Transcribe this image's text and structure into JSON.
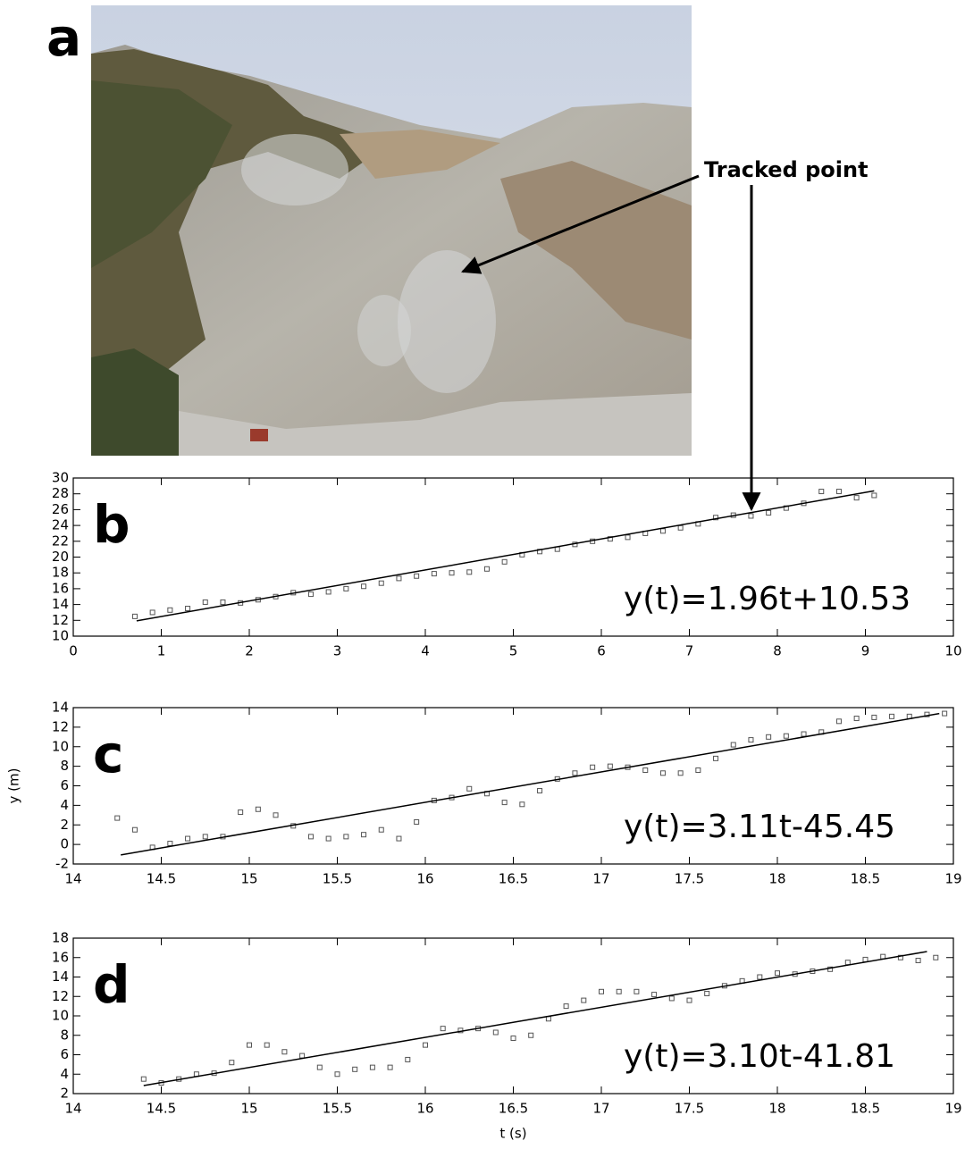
{
  "panel_a": {
    "label": "a",
    "annotation": "Tracked point"
  },
  "chart_data": [
    {
      "type": "scatter",
      "panel_label": "b",
      "equation": "y(t)=1.96t+10.53",
      "xlim": [
        0,
        10
      ],
      "xticks": [
        0,
        1,
        2,
        3,
        4,
        5,
        6,
        7,
        8,
        9,
        10
      ],
      "ylim": [
        10,
        30
      ],
      "yticks": [
        10,
        12,
        14,
        16,
        18,
        20,
        22,
        24,
        26,
        28,
        30
      ],
      "color": "#555555",
      "x": [
        0.7,
        0.9,
        1.1,
        1.3,
        1.5,
        1.7,
        1.9,
        2.1,
        2.3,
        2.5,
        2.7,
        2.9,
        3.1,
        3.3,
        3.5,
        3.7,
        3.9,
        4.1,
        4.3,
        4.5,
        4.7,
        4.9,
        5.1,
        5.3,
        5.5,
        5.7,
        5.9,
        6.1,
        6.3,
        6.5,
        6.7,
        6.9,
        7.1,
        7.3,
        7.5,
        7.7,
        7.9,
        8.1,
        8.3,
        8.5,
        8.7,
        8.9,
        9.1
      ],
      "values": [
        12.5,
        13.0,
        13.3,
        13.5,
        14.3,
        14.3,
        14.2,
        14.6,
        15.0,
        15.5,
        15.3,
        15.6,
        16.0,
        16.3,
        16.7,
        17.3,
        17.6,
        17.9,
        18.0,
        18.1,
        18.5,
        19.4,
        20.3,
        20.7,
        21.0,
        21.6,
        22.0,
        22.3,
        22.5,
        23.0,
        23.3,
        23.7,
        24.2,
        25.0,
        25.3,
        25.2,
        25.6,
        26.2,
        26.8,
        28.3,
        28.3,
        27.5,
        27.8
      ],
      "fit_x": [
        0.72,
        9.1
      ],
      "fit_values": [
        11.94,
        28.37
      ]
    },
    {
      "type": "scatter",
      "panel_label": "c",
      "equation": "y(t)=3.11t-45.45",
      "ylabel": "y (m)",
      "xlim": [
        14,
        19
      ],
      "xticks": [
        14,
        14.5,
        15,
        15.5,
        16,
        16.5,
        17,
        17.5,
        18,
        18.5,
        19
      ],
      "ylim": [
        -2,
        14
      ],
      "yticks": [
        -2,
        0,
        2,
        4,
        6,
        8,
        10,
        12,
        14
      ],
      "color": "#555555",
      "x": [
        14.25,
        14.35,
        14.45,
        14.55,
        14.65,
        14.75,
        14.85,
        14.95,
        15.05,
        15.15,
        15.25,
        15.35,
        15.45,
        15.55,
        15.65,
        15.75,
        15.85,
        15.95,
        16.05,
        16.15,
        16.25,
        16.35,
        16.45,
        16.55,
        16.65,
        16.75,
        16.85,
        16.95,
        17.05,
        17.15,
        17.25,
        17.35,
        17.45,
        17.55,
        17.65,
        17.75,
        17.85,
        17.95,
        18.05,
        18.15,
        18.25,
        18.35,
        18.45,
        18.55,
        18.65,
        18.75,
        18.85,
        18.95
      ],
      "values": [
        2.7,
        1.5,
        -0.3,
        0.1,
        0.6,
        0.8,
        0.8,
        3.3,
        3.6,
        3.0,
        1.9,
        0.8,
        0.6,
        0.8,
        1.0,
        1.5,
        0.6,
        2.3,
        4.5,
        4.8,
        5.7,
        5.2,
        4.3,
        4.1,
        5.5,
        6.7,
        7.3,
        7.9,
        8.0,
        7.9,
        7.6,
        7.3,
        7.3,
        7.6,
        8.8,
        10.2,
        10.7,
        11.0,
        11.1,
        11.3,
        11.5,
        12.6,
        12.9,
        13.0,
        13.1,
        13.1,
        13.3,
        13.4
      ],
      "fit_x": [
        14.27,
        18.92
      ],
      "fit_values": [
        -1.07,
        13.39
      ]
    },
    {
      "type": "scatter",
      "panel_label": "d",
      "equation": "y(t)=3.10t-41.81",
      "xlabel": "t (s)",
      "xlim": [
        14,
        19
      ],
      "xticks": [
        14,
        14.5,
        15,
        15.5,
        16,
        16.5,
        17,
        17.5,
        18,
        18.5,
        19
      ],
      "ylim": [
        2,
        18
      ],
      "yticks": [
        2,
        4,
        6,
        8,
        10,
        12,
        14,
        16,
        18
      ],
      "color": "#555555",
      "x": [
        14.4,
        14.5,
        14.6,
        14.7,
        14.8,
        14.9,
        15.0,
        15.1,
        15.2,
        15.3,
        15.4,
        15.5,
        15.6,
        15.7,
        15.8,
        15.9,
        16.0,
        16.1,
        16.2,
        16.3,
        16.4,
        16.5,
        16.6,
        16.7,
        16.8,
        16.9,
        17.0,
        17.1,
        17.2,
        17.3,
        17.4,
        17.5,
        17.6,
        17.7,
        17.8,
        17.9,
        18.0,
        18.1,
        18.2,
        18.3,
        18.4,
        18.5,
        18.6,
        18.7,
        18.8,
        18.9
      ],
      "values": [
        3.5,
        3.1,
        3.5,
        4.0,
        4.1,
        5.2,
        7.0,
        7.0,
        6.3,
        5.9,
        4.7,
        4.0,
        4.5,
        4.7,
        4.7,
        5.5,
        7.0,
        8.7,
        8.5,
        8.7,
        8.3,
        7.7,
        8.0,
        9.7,
        11.0,
        11.6,
        12.5,
        12.5,
        12.5,
        12.2,
        11.8,
        11.6,
        12.3,
        13.1,
        13.6,
        14.0,
        14.4,
        14.3,
        14.6,
        14.8,
        15.5,
        15.8,
        16.1,
        16.0,
        15.7,
        16.0
      ],
      "fit_x": [
        14.4,
        18.85
      ],
      "fit_values": [
        2.83,
        16.62
      ]
    }
  ]
}
